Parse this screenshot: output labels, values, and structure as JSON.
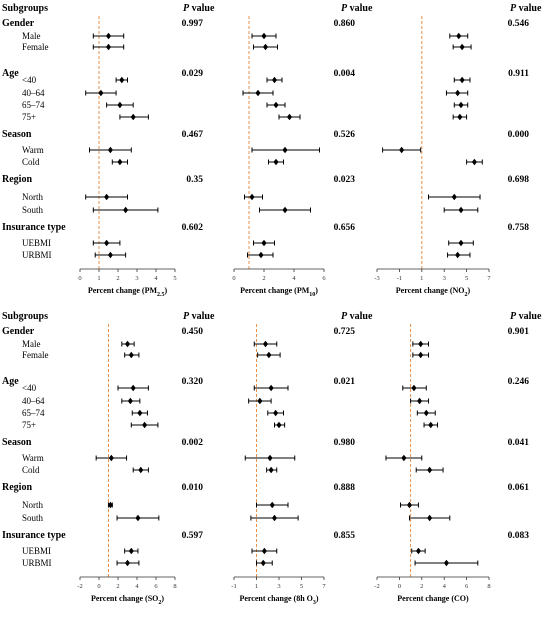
{
  "colors": {
    "point": "#000000",
    "reference": "#e8924a",
    "axis": "#333333"
  },
  "panels": [
    {
      "subgroups_header": "Subgroups",
      "pvalue_header": [
        "P",
        "value"
      ],
      "groups": [
        {
          "label": "Gender",
          "subs": [
            "Male",
            "Female"
          ]
        },
        {
          "label": "Age",
          "subs": [
            "<40",
            "40–64",
            "65–74",
            "75+"
          ]
        },
        {
          "label": "Season",
          "subs": [
            "Warm",
            "Cold"
          ]
        },
        {
          "label": "Region",
          "subs": [
            "North",
            "South"
          ]
        },
        {
          "label": "Insurance type",
          "subs": [
            "UEBMI",
            "URBMI"
          ]
        }
      ]
    },
    {
      "subgroups_header": "Subgroups",
      "pvalue_header": [
        "P",
        "value"
      ],
      "groups": [
        {
          "label": "Gender",
          "subs": [
            "Male",
            "Female"
          ]
        },
        {
          "label": "Age",
          "subs": [
            "<40",
            "40–64",
            "65–74",
            "75+"
          ]
        },
        {
          "label": "Season",
          "subs": [
            "Warm",
            "Cold"
          ]
        },
        {
          "label": "Region",
          "subs": [
            "North",
            "South"
          ]
        },
        {
          "label": "Insurance type",
          "subs": [
            "UEBMI",
            "URBMI"
          ]
        }
      ]
    }
  ],
  "chart_data": [
    {
      "type": "forest",
      "panel": 0,
      "xlabel": "Percent change (PM2.5)",
      "ref": 1,
      "xlim": [
        0,
        5
      ],
      "ticks": [
        0,
        1,
        2,
        3,
        4,
        5
      ],
      "pvalues": [
        "0.997",
        "0.029",
        "0.467",
        "0.35",
        "0.602"
      ],
      "points": [
        [
          1.5,
          0.7,
          2.3
        ],
        [
          1.5,
          0.7,
          2.3
        ],
        [
          2.2,
          1.9,
          2.5
        ],
        [
          1.1,
          0.3,
          1.9
        ],
        [
          2.1,
          1.4,
          2.8
        ],
        [
          2.8,
          2.1,
          3.6
        ],
        [
          1.6,
          0.5,
          2.7
        ],
        [
          2.1,
          1.7,
          2.5
        ],
        [
          1.4,
          0.3,
          2.5
        ],
        [
          2.4,
          0.7,
          4.1
        ],
        [
          1.4,
          0.7,
          2.1
        ],
        [
          1.6,
          0.8,
          2.4
        ]
      ]
    },
    {
      "type": "forest",
      "panel": 0,
      "xlabel": "Percent change (PM10)",
      "ref": 1,
      "xlim": [
        0,
        6
      ],
      "ticks": [
        0,
        2,
        4,
        6
      ],
      "pvalues": [
        "0.860",
        "0.004",
        "0.526",
        "0.023",
        "0.656"
      ],
      "points": [
        [
          2.0,
          1.2,
          2.8
        ],
        [
          2.1,
          1.3,
          2.9
        ],
        [
          2.7,
          2.2,
          3.2
        ],
        [
          1.6,
          0.6,
          2.6
        ],
        [
          2.8,
          2.2,
          3.4
        ],
        [
          3.7,
          3.0,
          4.4
        ],
        [
          3.4,
          1.2,
          5.7
        ],
        [
          2.8,
          2.3,
          3.3
        ],
        [
          1.2,
          0.7,
          1.9
        ],
        [
          3.4,
          1.7,
          5.1
        ],
        [
          2.0,
          1.3,
          2.7
        ],
        [
          1.8,
          0.9,
          2.6
        ]
      ]
    },
    {
      "type": "forest",
      "panel": 0,
      "xlabel": "Percent change (NO2)",
      "ref": 1,
      "xlim": [
        -3,
        7
      ],
      "ticks": [
        -3,
        -1,
        1,
        3,
        5,
        7
      ],
      "pvalues": [
        "0.546",
        "0.911",
        "0.000",
        "0.698",
        "0.758"
      ],
      "points": [
        [
          4.3,
          3.5,
          5.1
        ],
        [
          4.6,
          3.8,
          5.4
        ],
        [
          4.6,
          3.9,
          5.3
        ],
        [
          4.2,
          3.2,
          5.1
        ],
        [
          4.5,
          3.9,
          5.1
        ],
        [
          4.4,
          3.8,
          5.0
        ],
        [
          -0.8,
          -2.5,
          0.9
        ],
        [
          5.7,
          5.0,
          6.4
        ],
        [
          3.9,
          1.6,
          6.2
        ],
        [
          4.5,
          3.0,
          6.0
        ],
        [
          4.5,
          3.4,
          5.6
        ],
        [
          4.2,
          3.3,
          5.3
        ]
      ]
    },
    {
      "type": "forest",
      "panel": 1,
      "xlabel": "Percent change (SO2)",
      "ref": 1,
      "xlim": [
        -2,
        8
      ],
      "ticks": [
        -2,
        0,
        2,
        4,
        6,
        8
      ],
      "pvalues": [
        "0.450",
        "0.320",
        "0.002",
        "0.010",
        "0.597"
      ],
      "points": [
        [
          3.0,
          2.4,
          3.7
        ],
        [
          3.4,
          2.7,
          4.2
        ],
        [
          3.6,
          2.0,
          5.2
        ],
        [
          3.3,
          2.4,
          4.3
        ],
        [
          4.3,
          3.5,
          5.1
        ],
        [
          4.8,
          3.4,
          6.2
        ],
        [
          1.3,
          -0.3,
          2.9
        ],
        [
          4.4,
          3.6,
          5.2
        ],
        [
          1.2,
          1.0,
          1.4
        ],
        [
          4.1,
          1.9,
          6.3
        ],
        [
          3.4,
          2.7,
          4.1
        ],
        [
          3.0,
          1.9,
          4.2
        ]
      ]
    },
    {
      "type": "forest",
      "panel": 1,
      "xlabel": "Percent change (8h O3)",
      "ref": 1,
      "xlim": [
        -1,
        7
      ],
      "ticks": [
        -1,
        1,
        3,
        5,
        7
      ],
      "pvalues": [
        "0.725",
        "0.021",
        "0.980",
        "0.888",
        "0.855"
      ],
      "points": [
        [
          1.8,
          0.8,
          2.8
        ],
        [
          2.1,
          1.1,
          3.1
        ],
        [
          2.3,
          0.8,
          3.8
        ],
        [
          1.3,
          0.3,
          2.3
        ],
        [
          2.7,
          2.0,
          3.4
        ],
        [
          3.0,
          2.6,
          3.5
        ],
        [
          2.2,
          0.0,
          4.4
        ],
        [
          2.3,
          1.9,
          2.8
        ],
        [
          2.4,
          1.0,
          3.8
        ],
        [
          2.6,
          0.5,
          4.7
        ],
        [
          1.7,
          0.6,
          2.8
        ],
        [
          1.6,
          1.0,
          2.4
        ]
      ]
    },
    {
      "type": "forest",
      "panel": 1,
      "xlabel": "Percent change (CO)",
      "ref": 1,
      "xlim": [
        -2,
        8
      ],
      "ticks": [
        -2,
        0,
        2,
        4,
        6,
        8
      ],
      "pvalues": [
        "0.901",
        "0.246",
        "0.041",
        "0.061",
        "0.083"
      ],
      "points": [
        [
          1.9,
          1.2,
          2.6
        ],
        [
          1.9,
          1.2,
          2.6
        ],
        [
          1.3,
          0.3,
          2.4
        ],
        [
          1.8,
          1.0,
          2.6
        ],
        [
          2.4,
          1.6,
          3.2
        ],
        [
          2.8,
          2.2,
          3.4
        ],
        [
          0.4,
          -1.2,
          2.0
        ],
        [
          2.7,
          1.5,
          3.9
        ],
        [
          0.9,
          0.1,
          1.7
        ],
        [
          2.7,
          0.9,
          4.5
        ],
        [
          1.7,
          1.1,
          2.3
        ],
        [
          4.2,
          1.4,
          7.0
        ]
      ]
    }
  ]
}
